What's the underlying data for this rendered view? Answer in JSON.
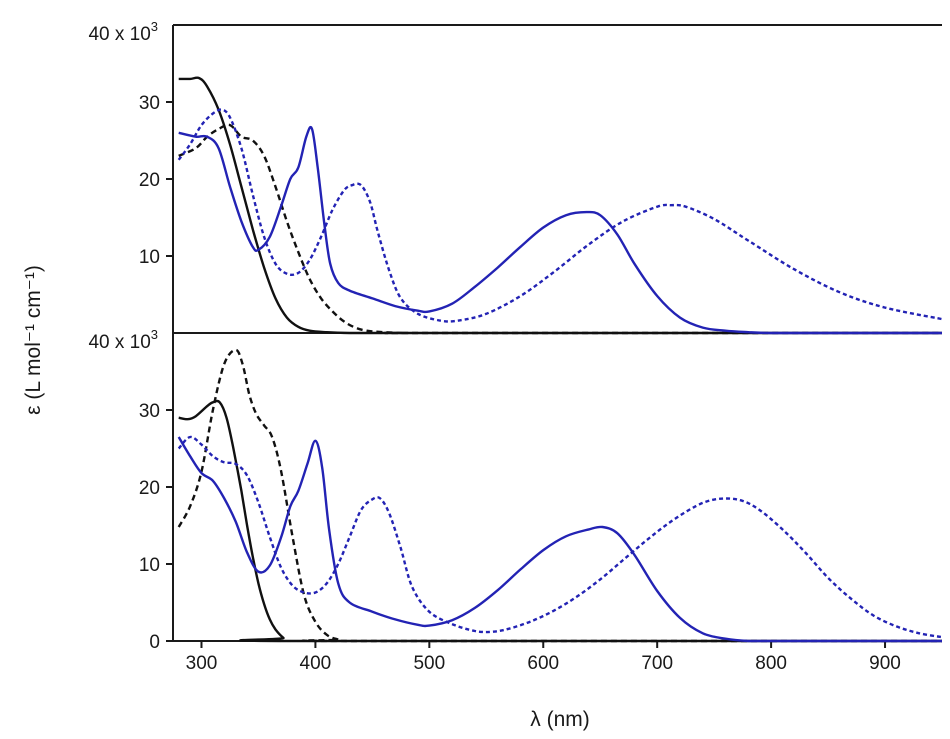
{
  "chart_data": [
    {
      "type": "line",
      "panel": "top",
      "title": "",
      "xlabel": "λ (nm)",
      "ylabel": "ε (L mol⁻¹ cm⁻¹)",
      "xlim": [
        275,
        950
      ],
      "ylim": [
        0,
        40000
      ],
      "yaxis_multiplier_label": "40 x 10",
      "yaxis_multiplier_exp": "3",
      "yticks": [
        10,
        20,
        30
      ],
      "ytick_labels": [
        "10",
        "20",
        "30"
      ],
      "grid": false,
      "legend": "none",
      "series": [
        {
          "color": "#111111",
          "dash": "solid",
          "x": [
            280,
            290,
            298,
            305,
            315,
            325,
            335,
            345,
            355,
            365,
            375,
            385,
            395,
            410,
            430,
            450,
            500,
            950
          ],
          "y": [
            33000,
            33000,
            33100,
            32000,
            29000,
            24500,
            19000,
            13500,
            8500,
            4500,
            2000,
            800,
            300,
            100,
            0,
            0,
            0,
            0
          ]
        },
        {
          "color": "#111111",
          "dash": "dashed",
          "x": [
            280,
            295,
            305,
            315,
            325,
            335,
            345,
            355,
            365,
            375,
            385,
            395,
            405,
            415,
            425,
            435,
            445,
            460,
            480,
            500,
            950
          ],
          "y": [
            23000,
            24000,
            25500,
            26500,
            27000,
            25500,
            25000,
            23000,
            19000,
            14500,
            10500,
            7000,
            4500,
            2800,
            1500,
            700,
            300,
            100,
            0,
            0,
            0
          ]
        },
        {
          "color": "#2323b4",
          "dash": "solid",
          "x": [
            280,
            295,
            305,
            315,
            325,
            335,
            345,
            350,
            360,
            370,
            378,
            385,
            392,
            397,
            402,
            408,
            413,
            420,
            430,
            450,
            470,
            490,
            500,
            520,
            540,
            560,
            580,
            600,
            620,
            638,
            650,
            665,
            680,
            700,
            720,
            740,
            760,
            780,
            800,
            840,
            950
          ],
          "y": [
            26000,
            25500,
            25500,
            24000,
            19000,
            14500,
            11200,
            10800,
            12500,
            16500,
            20000,
            21500,
            25500,
            26500,
            21500,
            14000,
            9000,
            6500,
            5500,
            4500,
            3500,
            2900,
            2800,
            3800,
            6000,
            8500,
            11200,
            13700,
            15300,
            15700,
            15300,
            12800,
            9000,
            4800,
            2000,
            700,
            300,
            100,
            0,
            0,
            0
          ]
        },
        {
          "color": "#2323b4",
          "dash": "dotted",
          "x": [
            280,
            290,
            300,
            310,
            318,
            325,
            335,
            345,
            355,
            365,
            375,
            385,
            395,
            405,
            415,
            425,
            432,
            440,
            448,
            455,
            465,
            475,
            490,
            510,
            525,
            550,
            580,
            610,
            640,
            670,
            700,
            712,
            725,
            750,
            780,
            820,
            860,
            900,
            950
          ],
          "y": [
            22500,
            24500,
            27000,
            28500,
            29000,
            28000,
            24000,
            18000,
            12500,
            9000,
            7700,
            7800,
            9500,
            12500,
            16000,
            18500,
            19200,
            19200,
            17000,
            13000,
            8000,
            4500,
            2500,
            1600,
            1600,
            2500,
            4800,
            8000,
            11500,
            14500,
            16400,
            16600,
            16400,
            14800,
            12000,
            8300,
            5300,
            3300,
            1800
          ]
        }
      ]
    },
    {
      "type": "line",
      "panel": "bottom",
      "title": "",
      "xlabel": "λ (nm)",
      "ylabel": "ε (L mol⁻¹ cm⁻¹)",
      "xlim": [
        275,
        950
      ],
      "ylim": [
        0,
        40000
      ],
      "yaxis_multiplier_label": "40 x 10",
      "yaxis_multiplier_exp": "3",
      "xticks": [
        300,
        400,
        500,
        600,
        700,
        800,
        900
      ],
      "xtick_labels": [
        "300",
        "400",
        "500",
        "600",
        "700",
        "800",
        "900"
      ],
      "yticks": [
        0,
        10,
        20,
        30
      ],
      "ytick_labels": [
        "0",
        "10",
        "20",
        "30"
      ],
      "grid": false,
      "legend": "none",
      "series": [
        {
          "color": "#111111",
          "dash": "solid",
          "x": [
            280,
            288,
            295,
            305,
            310,
            316,
            322,
            328,
            335,
            340,
            345,
            350,
            355,
            360,
            365,
            372,
            378,
            950
          ],
          "y": [
            29000,
            28800,
            29200,
            30500,
            31000,
            31000,
            29000,
            25000,
            19500,
            15000,
            11000,
            7500,
            4800,
            2800,
            1500,
            400,
            0,
            0
          ]
        },
        {
          "color": "#111111",
          "dash": "dashed",
          "x": [
            280,
            290,
            300,
            310,
            320,
            330,
            336,
            342,
            348,
            355,
            362,
            370,
            380,
            390,
            400,
            410,
            420,
            430,
            950
          ],
          "y": [
            14800,
            17500,
            22000,
            30000,
            36000,
            37800,
            36000,
            32000,
            29500,
            28000,
            26500,
            22000,
            13500,
            6000,
            2500,
            800,
            200,
            0,
            0
          ]
        },
        {
          "color": "#2323b4",
          "dash": "solid",
          "x": [
            280,
            290,
            300,
            310,
            320,
            330,
            340,
            350,
            360,
            370,
            378,
            385,
            393,
            400,
            406,
            412,
            420,
            430,
            450,
            470,
            490,
            500,
            520,
            540,
            560,
            580,
            600,
            620,
            640,
            652,
            665,
            680,
            700,
            720,
            740,
            760,
            780,
            800,
            950
          ],
          "y": [
            26500,
            24000,
            21800,
            20800,
            18500,
            15500,
            11500,
            9000,
            9800,
            13500,
            17500,
            19500,
            23000,
            26000,
            22500,
            14500,
            7500,
            5000,
            3800,
            2800,
            2100,
            2000,
            2700,
            4300,
            6600,
            9300,
            11800,
            13600,
            14500,
            14800,
            14000,
            11200,
            6500,
            3000,
            1000,
            300,
            0,
            0,
            0
          ]
        },
        {
          "color": "#2323b4",
          "dash": "dotted",
          "x": [
            280,
            290,
            300,
            310,
            320,
            330,
            340,
            350,
            360,
            370,
            380,
            390,
            400,
            410,
            420,
            430,
            440,
            450,
            457,
            465,
            475,
            485,
            500,
            520,
            540,
            555,
            570,
            590,
            610,
            630,
            650,
            670,
            690,
            710,
            730,
            745,
            760,
            775,
            790,
            810,
            830,
            850,
            870,
            890,
            910,
            930,
            950
          ],
          "y": [
            25000,
            26500,
            25500,
            24000,
            23200,
            23000,
            21500,
            18000,
            13500,
            9500,
            7200,
            6300,
            6300,
            7500,
            10000,
            13500,
            17000,
            18400,
            18500,
            16500,
            12000,
            7000,
            3800,
            2200,
            1300,
            1200,
            1600,
            2600,
            4000,
            5800,
            8000,
            10500,
            13000,
            15300,
            17200,
            18200,
            18500,
            18200,
            17000,
            14500,
            11500,
            8200,
            5500,
            3300,
            1900,
            1000,
            500
          ]
        }
      ]
    }
  ]
}
